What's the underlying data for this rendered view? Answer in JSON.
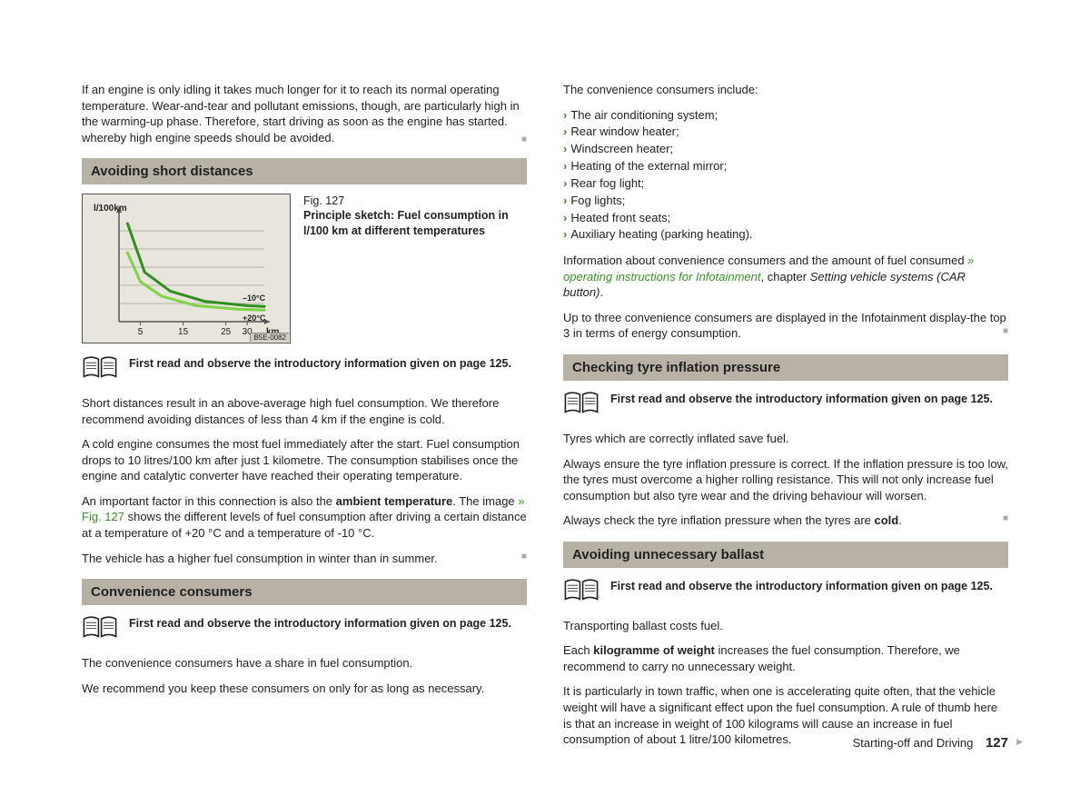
{
  "intro_para": {
    "text": "If an engine is only idling it takes much longer for it to reach its normal operating temperature. Wear-and-tear and pollutant emissions, though, are particularly high in the warming-up phase. Therefore, start driving as soon as the engine has started. whereby high engine speeds should be avoided."
  },
  "sec1": {
    "heading": "Avoiding short distances",
    "fig_label": "Fig. 127",
    "fig_caption": "Principle sketch: Fuel consumption in l/100 km at different temperatures",
    "chart": {
      "x_ticks": [
        "5",
        "15",
        "25",
        "30"
      ],
      "x_unit": "km",
      "y_label": "l/100km",
      "series": [
        {
          "label": "–10°C",
          "color": "#2f8f1f",
          "points": [
            [
              2,
              135
            ],
            [
              6,
              68
            ],
            [
              12,
              42
            ],
            [
              20,
              28
            ],
            [
              30,
              22
            ],
            [
              34,
              21
            ]
          ]
        },
        {
          "label": "+20°C",
          "color": "#7fd24a",
          "points": [
            [
              2,
              95
            ],
            [
              5,
              55
            ],
            [
              10,
              35
            ],
            [
              18,
              22
            ],
            [
              28,
              17
            ],
            [
              34,
              16
            ]
          ]
        }
      ],
      "axis_color": "#555",
      "grid_color": "#b8b2a4",
      "bg": "#e8e5dc",
      "ref": "B5E-0082"
    },
    "note": "First read and observe the introductory information given on page 125.",
    "p1": "Short distances result in an above-average high fuel consumption. We therefore recommend avoiding distances of less than 4 km if the engine is cold.",
    "p2": "A cold engine consumes the most fuel immediately after the start. Fuel consumption drops to 10 litres/100 km after just 1 kilometre. The consumption stabilises once the engine and catalytic converter have reached their operating temperature.",
    "p3a": "An important factor in this connection is also the ",
    "p3b": "ambient temperature",
    "p3c": ". The image ",
    "p3link": "» Fig. 127",
    "p3d": " shows the different levels of fuel consumption after driving a certain distance at a temperature of +20 °C and a temperature of -10 °C.",
    "p4": "The vehicle has a higher fuel consumption in winter than in summer."
  },
  "sec2": {
    "heading": "Convenience consumers",
    "note": "First read and observe the introductory information given on page 125.",
    "p1": "The convenience consumers have a share in fuel consumption.",
    "p2": "We recommend you keep these consumers on only for as long as necessary."
  },
  "col2top": {
    "lead": "The convenience consumers include:",
    "items": [
      "The air conditioning system;",
      "Rear window heater;",
      "Windscreen heater;",
      "Heating of the external mirror;",
      "Rear fog light;",
      "Fog lights;",
      "Heated front seats;",
      "Auxiliary heating (parking heating)."
    ],
    "info_a": "Information about convenience consumers and the amount of fuel consumed ",
    "info_link": "» operating instructions for Infotainment",
    "info_b": ", chapter ",
    "info_i": "Setting vehicle systems (CAR button)",
    "info_c": ".",
    "p2": "Up to three convenience consumers are displayed in the Infotainment display-the top 3 in terms of energy consumption."
  },
  "sec3": {
    "heading": "Checking tyre inflation pressure",
    "note": "First read and observe the introductory information given on page 125.",
    "p1": "Tyres which are correctly inflated save fuel.",
    "p2": "Always ensure the tyre inflation pressure is correct. If the inflation pressure is too low, the tyres must overcome a higher rolling resistance. This will not only increase fuel consumption but also tyre wear and the driving behaviour will worsen.",
    "p3a": "Always check the tyre inflation pressure when the tyres are ",
    "p3b": "cold",
    "p3c": "."
  },
  "sec4": {
    "heading": "Avoiding unnecessary ballast",
    "note": "First read and observe the introductory information given on page 125.",
    "p1": "Transporting ballast costs fuel.",
    "p2a": "Each ",
    "p2b": "kilogramme of weight",
    "p2c": " increases the fuel consumption. Therefore, we recommend to carry no unnecessary weight.",
    "p3": "It is particularly in town traffic, when one is accelerating quite often, that the vehicle weight will have a significant effect upon the fuel consumption. A rule of thumb here is that an increase in weight of 100 kilograms will cause an increase in fuel consumption of about 1 litre/100 kilometres."
  },
  "footer": {
    "section": "Starting-off and Driving",
    "page": "127"
  }
}
